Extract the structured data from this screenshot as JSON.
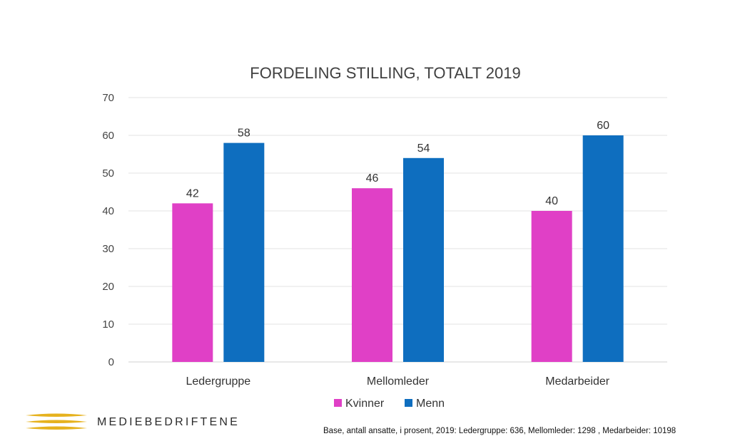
{
  "chart_data": {
    "type": "bar",
    "title": "FORDELING STILLING, TOTALT 2019",
    "categories": [
      "Ledergruppe",
      "Mellomleder",
      "Medarbeider"
    ],
    "series": [
      {
        "name": "Kvinner",
        "values": [
          42,
          46,
          40
        ],
        "color": "#e040c6"
      },
      {
        "name": "Menn",
        "values": [
          58,
          54,
          60
        ],
        "color": "#0e6ebf"
      }
    ],
    "ylim": [
      0,
      70
    ],
    "yticks": [
      0,
      10,
      20,
      30,
      40,
      50,
      60,
      70
    ],
    "grid": true,
    "legend": "bottom",
    "data_labels": true
  },
  "footer": {
    "brand": "MEDIEBEDRIFTENE",
    "note": "Base, antall ansatte, i prosent, 2019:  Ledergruppe: 636, Mellomleder: 1298 , Medarbeider: 10198",
    "logo_color": "#e6b21e"
  }
}
